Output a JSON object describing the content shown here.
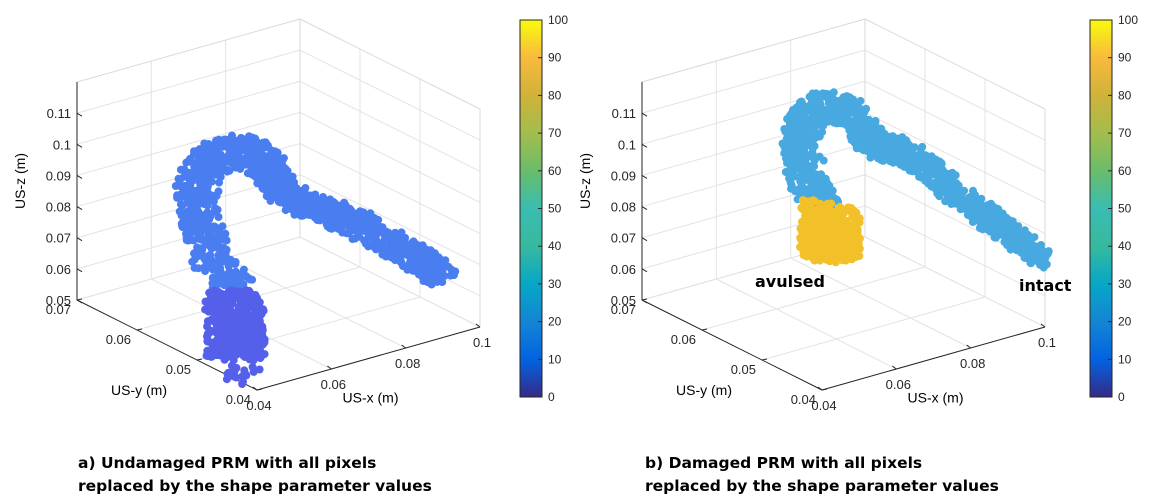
{
  "chart_data": [
    {
      "type": "scatter",
      "subtype": "3d-point-cloud",
      "xlabel": "US-x (m)",
      "ylabel": "US-y (m)",
      "zlabel": "US-z (m)",
      "x_ticks": [
        "0.04",
        "0.06",
        "0.08",
        "0.1"
      ],
      "y_ticks": [
        "0.04",
        "0.05",
        "0.06",
        "0.07"
      ],
      "z_ticks": [
        "0.05",
        "0.06",
        "0.07",
        "0.08",
        "0.09",
        "0.1",
        "0.11"
      ],
      "xlim": [
        0.04,
        0.1
      ],
      "ylim": [
        0.04,
        0.07
      ],
      "zlim": [
        0.05,
        0.12
      ],
      "grid": true,
      "colorbar": {
        "ticks": [
          "0",
          "10",
          "20",
          "30",
          "40",
          "50",
          "60",
          "70",
          "80",
          "90",
          "100"
        ],
        "range": [
          0,
          100
        ],
        "colormap": "parula"
      },
      "series": [
        {
          "region": "upper",
          "value": 33,
          "color": "#4a7ef0"
        },
        {
          "region": "lower",
          "value": 22,
          "color": "#5560ea"
        }
      ],
      "annotations": [],
      "caption": [
        "a) Undamaged PRM with all pixels",
        "replaced by the shape parameter values"
      ]
    },
    {
      "type": "scatter",
      "subtype": "3d-point-cloud",
      "xlabel": "US-x (m)",
      "ylabel": "US-y (m)",
      "zlabel": "US-z (m)",
      "x_ticks": [
        "0.04",
        "0.06",
        "0.08",
        "0.1"
      ],
      "y_ticks": [
        "0.04",
        "0.05",
        "0.06",
        "0.07"
      ],
      "z_ticks": [
        "0.05",
        "0.06",
        "0.07",
        "0.08",
        "0.09",
        "0.1",
        "0.11"
      ],
      "xlim": [
        0.04,
        0.1
      ],
      "ylim": [
        0.04,
        0.07
      ],
      "zlim": [
        0.05,
        0.12
      ],
      "grid": true,
      "colorbar": {
        "ticks": [
          "0",
          "10",
          "20",
          "30",
          "40",
          "50",
          "60",
          "70",
          "80",
          "90",
          "100"
        ],
        "range": [
          0,
          100
        ],
        "colormap": "parula"
      },
      "series": [
        {
          "region": "upper",
          "value": 40,
          "color": "#48a9e0"
        },
        {
          "region": "lower",
          "value": 82,
          "color": "#f2c12a"
        }
      ],
      "annotations": [
        "avulsed",
        "intact"
      ],
      "caption": [
        "b) Damaged PRM with all pixels",
        "replaced by the shape parameter values"
      ]
    }
  ]
}
